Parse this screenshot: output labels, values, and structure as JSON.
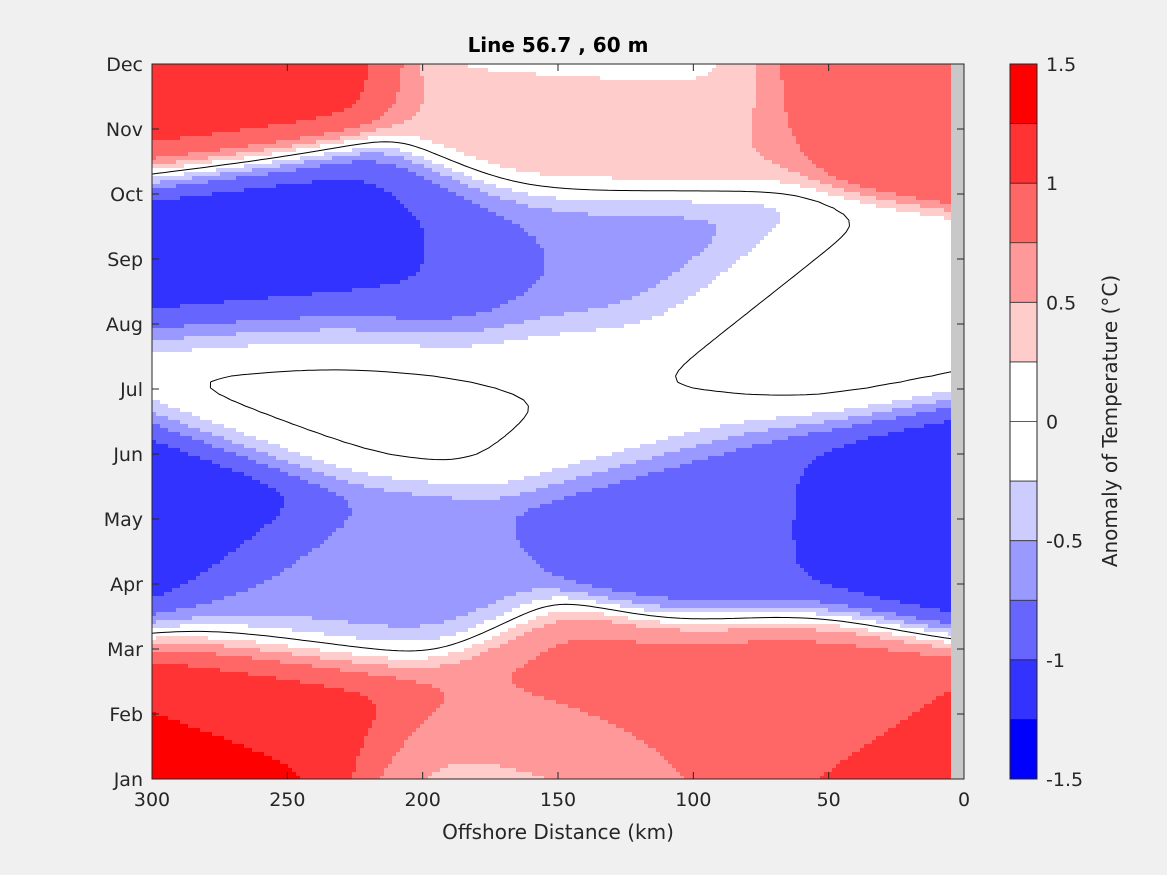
{
  "chart_data": {
    "type": "heatmap",
    "subtype": "filled-contour",
    "title": "Line 56.7 , 60 m",
    "xlabel": "Offshore Distance (km)",
    "ylabel": "",
    "colorbar_label": "Anomaly of Temperature (°C)",
    "xlim": [
      300,
      0
    ],
    "x_direction": "reversed",
    "x_ticks": [
      300,
      250,
      200,
      150,
      100,
      50,
      0
    ],
    "x_tick_labels": [
      "300",
      "250",
      "200",
      "150",
      "100",
      "50",
      "0"
    ],
    "y_categories": [
      "Jan",
      "Feb",
      "Mar",
      "Apr",
      "May",
      "Jun",
      "Jul",
      "Aug",
      "Sep",
      "Oct",
      "Nov",
      "Dec"
    ],
    "ylim": [
      "Jan",
      "Dec"
    ],
    "clim": [
      -1.5,
      1.5
    ],
    "contour_step": 0.25,
    "colorbar_ticks": [
      1.5,
      1,
      0.5,
      0,
      -0.5,
      -1,
      -1.5
    ],
    "colorbar_tick_labels": [
      "1.5",
      "1",
      "0.5",
      "0",
      "-0.5",
      "-1",
      "-1.5"
    ],
    "colormap": [
      "#0000ff",
      "#3333ff",
      "#6666ff",
      "#9999ff",
      "#ccccff",
      "#ffffff",
      "#ffffff",
      "#ffcccc",
      "#ff9999",
      "#ff6666",
      "#ff3333",
      "#ff0000"
    ],
    "zero_contour_lines": true,
    "no_data_color": "#c8c8c8",
    "features": [
      {
        "x": 280,
        "month": "Jan",
        "value": 1.4
      },
      {
        "x": 250,
        "month": "Feb",
        "value": 1.1
      },
      {
        "x": 15,
        "month": "Jan",
        "value": 1.1
      },
      {
        "x": 70,
        "month": "Feb",
        "value": 0.85
      },
      {
        "x": 145,
        "month": "Feb",
        "value": 0.8
      },
      {
        "x": 290,
        "month": "May",
        "value": -1.15
      },
      {
        "x": 245,
        "month": "Sep",
        "value": -1.1
      },
      {
        "x": 205,
        "month": "Sep",
        "value": -1.0
      },
      {
        "x": 170,
        "month": "Jan",
        "value": 0.4
      },
      {
        "x": 20,
        "month": "May",
        "value": -1.1
      },
      {
        "x": 90,
        "month": "May",
        "value": -0.95
      },
      {
        "x": 135,
        "month": "Sep",
        "value": -0.7
      },
      {
        "x": 228,
        "month": "Apr",
        "value": -0.65
      },
      {
        "x": 230,
        "month": "Jul",
        "value": 0.05
      },
      {
        "x": 135,
        "month": "Jul",
        "value": 0.0
      },
      {
        "x": 130,
        "month": "Dec",
        "value": 0.1
      },
      {
        "x": 70,
        "month": "Aug",
        "value": 0.05
      },
      {
        "x": 135,
        "month": "Nov",
        "value": 0.55
      },
      {
        "x": 20,
        "month": "Dec",
        "value": 1.0
      },
      {
        "x": 275,
        "month": "Dec",
        "value": 1.05
      }
    ]
  }
}
